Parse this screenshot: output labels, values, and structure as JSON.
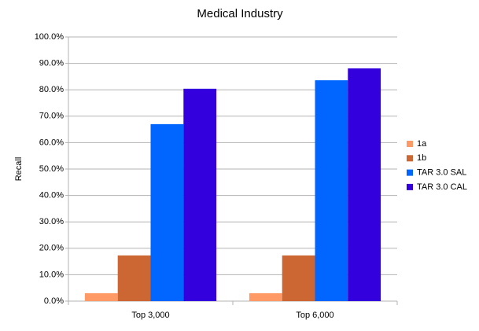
{
  "chart_data": {
    "type": "bar",
    "title": "Medical Industry",
    "y_label": "Recall",
    "categories": [
      "Top 3,000",
      "Top 6,000"
    ],
    "series": [
      {
        "name": "1a",
        "color": "#ff9966",
        "values": [
          3.0,
          3.0
        ]
      },
      {
        "name": "1b",
        "color": "#cc6633",
        "values": [
          17.3,
          17.3
        ]
      },
      {
        "name": "TAR 3.0 SAL",
        "color": "#0066ff",
        "values": [
          67.0,
          83.6
        ]
      },
      {
        "name": "TAR 3.0 CAL",
        "color": "#3300dd",
        "values": [
          80.4,
          88.1
        ]
      }
    ],
    "ylim": [
      0,
      100
    ],
    "yticks": [
      {
        "value": 0,
        "label": "0.0%"
      },
      {
        "value": 10,
        "label": "10.0%"
      },
      {
        "value": 20,
        "label": "20.0%"
      },
      {
        "value": 30,
        "label": "30.0%"
      },
      {
        "value": 40,
        "label": "40.0%"
      },
      {
        "value": 50,
        "label": "50.0%"
      },
      {
        "value": 60,
        "label": "60.0%"
      },
      {
        "value": 70,
        "label": "70.0%"
      },
      {
        "value": 80,
        "label": "80.0%"
      },
      {
        "value": 90,
        "label": "90.0%"
      },
      {
        "value": 100,
        "label": "100.0%"
      }
    ],
    "grid": true,
    "legend": "right"
  }
}
